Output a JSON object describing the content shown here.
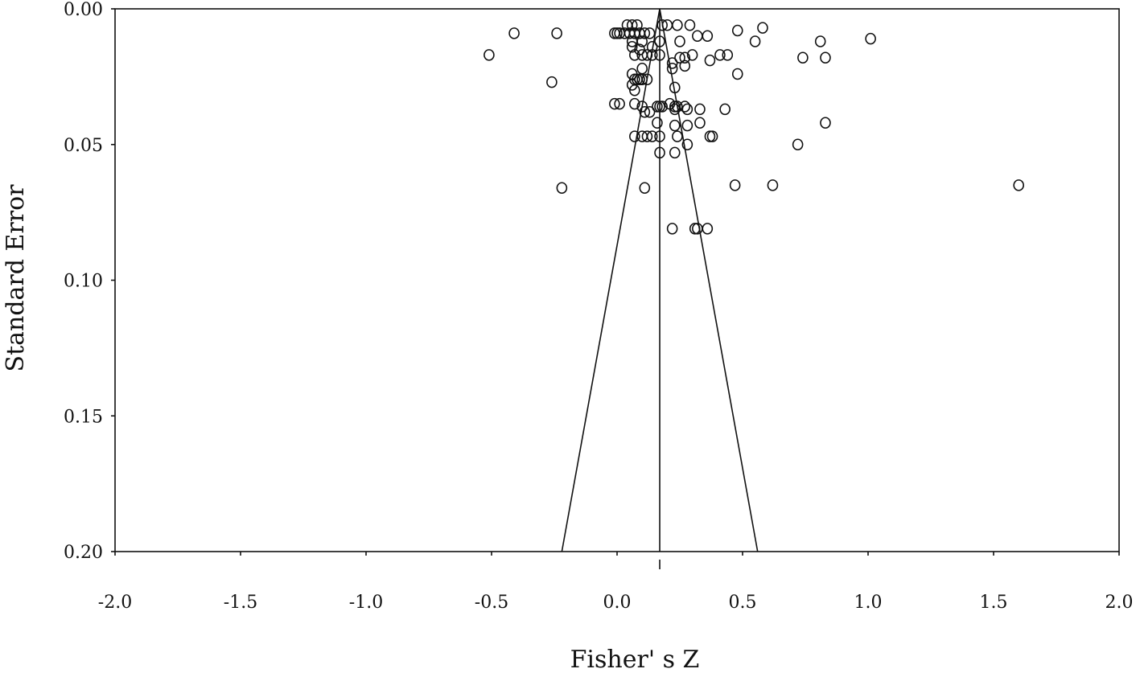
{
  "chart_data": {
    "type": "scatter",
    "title": "",
    "xlabel": "Fisher' s Z",
    "ylabel": "Standard  Error",
    "xlim": [
      -2.0,
      2.0
    ],
    "ylim": [
      0.0,
      0.2
    ],
    "y_inverted": true,
    "x_ticks": [
      "-2.0",
      "-1.5",
      "-1.0",
      "-0.5",
      "0.0",
      "0.5",
      "1.0",
      "1.5",
      "2.0"
    ],
    "y_ticks": [
      "0.00",
      "0.05",
      "0.10",
      "0.15",
      "0.20"
    ],
    "pooled_effect": 0.17,
    "funnel_apex": [
      0.17,
      0.0
    ],
    "funnel_base": [
      [
        -0.22,
        0.2
      ],
      [
        0.56,
        0.2
      ]
    ],
    "grid": false,
    "marker": "open-circle",
    "points": [
      [
        0.04,
        0.006
      ],
      [
        0.06,
        0.006
      ],
      [
        0.08,
        0.006
      ],
      [
        0.18,
        0.006
      ],
      [
        0.2,
        0.006
      ],
      [
        0.24,
        0.006
      ],
      [
        0.29,
        0.006
      ],
      [
        0.58,
        0.007
      ],
      [
        0.48,
        0.008
      ],
      [
        -0.41,
        0.009
      ],
      [
        -0.24,
        0.009
      ],
      [
        -0.01,
        0.009
      ],
      [
        0.0,
        0.009
      ],
      [
        0.01,
        0.009
      ],
      [
        0.03,
        0.009
      ],
      [
        0.05,
        0.009
      ],
      [
        0.07,
        0.009
      ],
      [
        0.09,
        0.009
      ],
      [
        0.11,
        0.009
      ],
      [
        0.13,
        0.009
      ],
      [
        0.32,
        0.01
      ],
      [
        0.36,
        0.01
      ],
      [
        1.01,
        0.011
      ],
      [
        0.81,
        0.012
      ],
      [
        0.17,
        0.012
      ],
      [
        0.1,
        0.012
      ],
      [
        0.06,
        0.012
      ],
      [
        0.25,
        0.012
      ],
      [
        0.55,
        0.012
      ],
      [
        0.06,
        0.014
      ],
      [
        0.09,
        0.015
      ],
      [
        0.14,
        0.014
      ],
      [
        -0.51,
        0.017
      ],
      [
        0.07,
        0.017
      ],
      [
        0.1,
        0.017
      ],
      [
        0.12,
        0.017
      ],
      [
        0.14,
        0.017
      ],
      [
        0.17,
        0.017
      ],
      [
        0.25,
        0.018
      ],
      [
        0.27,
        0.018
      ],
      [
        0.3,
        0.017
      ],
      [
        0.41,
        0.017
      ],
      [
        0.44,
        0.017
      ],
      [
        0.74,
        0.018
      ],
      [
        0.83,
        0.018
      ],
      [
        0.37,
        0.019
      ],
      [
        0.22,
        0.02
      ],
      [
        0.27,
        0.021
      ],
      [
        0.22,
        0.022
      ],
      [
        0.1,
        0.022
      ],
      [
        0.06,
        0.024
      ],
      [
        0.48,
        0.024
      ],
      [
        -0.26,
        0.027
      ],
      [
        0.07,
        0.026
      ],
      [
        0.08,
        0.026
      ],
      [
        0.09,
        0.026
      ],
      [
        0.1,
        0.026
      ],
      [
        0.12,
        0.026
      ],
      [
        0.06,
        0.028
      ],
      [
        0.23,
        0.029
      ],
      [
        0.07,
        0.03
      ],
      [
        -0.01,
        0.035
      ],
      [
        0.01,
        0.035
      ],
      [
        0.07,
        0.035
      ],
      [
        0.1,
        0.036
      ],
      [
        0.11,
        0.038
      ],
      [
        0.13,
        0.038
      ],
      [
        0.16,
        0.036
      ],
      [
        0.17,
        0.036
      ],
      [
        0.18,
        0.036
      ],
      [
        0.21,
        0.035
      ],
      [
        0.23,
        0.036
      ],
      [
        0.24,
        0.036
      ],
      [
        0.27,
        0.036
      ],
      [
        0.28,
        0.037
      ],
      [
        0.33,
        0.037
      ],
      [
        0.43,
        0.037
      ],
      [
        0.23,
        0.037
      ],
      [
        0.16,
        0.042
      ],
      [
        0.23,
        0.043
      ],
      [
        0.28,
        0.043
      ],
      [
        0.33,
        0.042
      ],
      [
        0.83,
        0.042
      ],
      [
        0.07,
        0.047
      ],
      [
        0.1,
        0.047
      ],
      [
        0.12,
        0.047
      ],
      [
        0.14,
        0.047
      ],
      [
        0.17,
        0.047
      ],
      [
        0.24,
        0.047
      ],
      [
        0.37,
        0.047
      ],
      [
        0.38,
        0.047
      ],
      [
        0.28,
        0.05
      ],
      [
        0.72,
        0.05
      ],
      [
        0.17,
        0.053
      ],
      [
        0.23,
        0.053
      ],
      [
        -0.22,
        0.066
      ],
      [
        0.11,
        0.066
      ],
      [
        0.47,
        0.065
      ],
      [
        0.62,
        0.065
      ],
      [
        1.6,
        0.065
      ],
      [
        0.22,
        0.081
      ],
      [
        0.31,
        0.081
      ],
      [
        0.32,
        0.081
      ],
      [
        0.36,
        0.081
      ]
    ]
  }
}
